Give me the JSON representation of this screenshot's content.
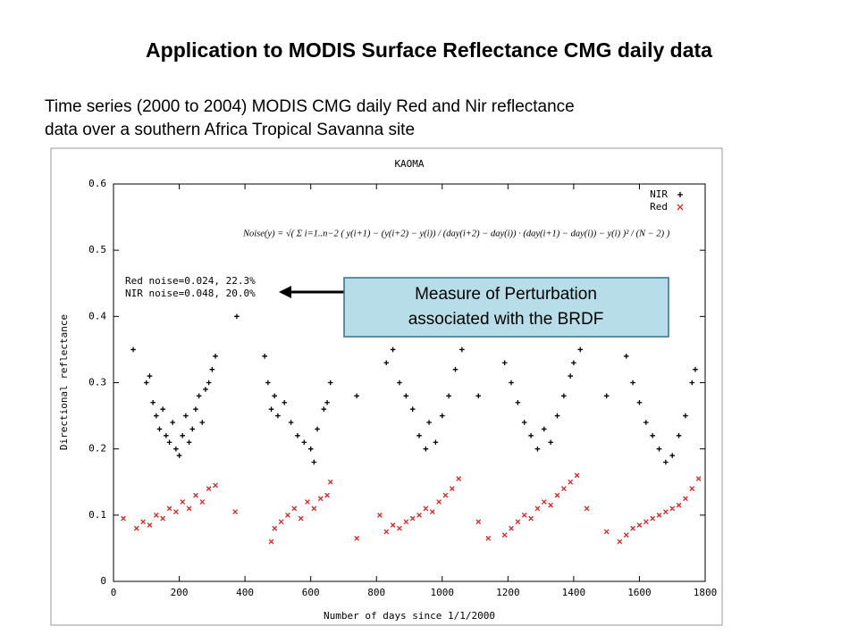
{
  "slide": {
    "title": "Application to MODIS Surface Reflectance CMG daily data",
    "subtitle": [
      "Time series (2000 to 2004) MODIS CMG daily Red and Nir reflectance",
      "data over a southern Africa Tropical Savanna site"
    ],
    "callout": [
      "Measure of Perturbation",
      "associated with the BRDF"
    ]
  },
  "chart_data": {
    "type": "scatter",
    "title": "KAOMA",
    "xlabel": "Number of days since 1/1/2000",
    "ylabel": "Directional reflectance",
    "formula": "Noise(y) = √( Σ i=1..n−2 ( y(i+1) − (y(i+2) − y(i)) / (day(i+2) − day(i)) · (day(i+1) − day(i)) − y(i) )² / (N − 2) )",
    "annotations": [
      "Red noise=0.024, 22.3%",
      "NIR noise=0.048, 20.0%"
    ],
    "xlim": [
      0,
      1800
    ],
    "xticks": [
      0,
      200,
      400,
      600,
      800,
      1000,
      1200,
      1400,
      1600,
      1800
    ],
    "ylim": [
      0,
      0.6
    ],
    "yticks": [
      0,
      0.1,
      0.2,
      0.3,
      0.4,
      0.5,
      0.6
    ],
    "legend": "upper right",
    "series": [
      {
        "name": "NIR",
        "color": "#000000",
        "marker": "plus",
        "x": [
          60,
          100,
          110,
          120,
          130,
          140,
          150,
          160,
          170,
          180,
          190,
          200,
          210,
          220,
          230,
          240,
          250,
          260,
          270,
          280,
          290,
          300,
          310,
          375,
          460,
          470,
          480,
          490,
          500,
          520,
          540,
          560,
          580,
          600,
          610,
          620,
          640,
          650,
          660,
          740,
          830,
          850,
          870,
          890,
          910,
          930,
          950,
          960,
          980,
          1000,
          1020,
          1040,
          1060,
          1110,
          1190,
          1210,
          1230,
          1250,
          1270,
          1290,
          1310,
          1330,
          1350,
          1370,
          1390,
          1400,
          1420,
          1500,
          1560,
          1580,
          1600,
          1620,
          1640,
          1660,
          1680,
          1700,
          1720,
          1740,
          1760,
          1770
        ],
        "values": [
          0.35,
          0.3,
          0.31,
          0.27,
          0.25,
          0.23,
          0.26,
          0.22,
          0.21,
          0.24,
          0.2,
          0.19,
          0.22,
          0.25,
          0.21,
          0.23,
          0.26,
          0.28,
          0.24,
          0.29,
          0.3,
          0.32,
          0.34,
          0.4,
          0.34,
          0.3,
          0.26,
          0.28,
          0.25,
          0.27,
          0.24,
          0.22,
          0.21,
          0.2,
          0.18,
          0.23,
          0.26,
          0.27,
          0.3,
          0.28,
          0.33,
          0.35,
          0.3,
          0.28,
          0.26,
          0.22,
          0.2,
          0.24,
          0.21,
          0.25,
          0.28,
          0.32,
          0.35,
          0.28,
          0.33,
          0.3,
          0.27,
          0.24,
          0.22,
          0.2,
          0.23,
          0.21,
          0.25,
          0.28,
          0.31,
          0.33,
          0.35,
          0.28,
          0.34,
          0.3,
          0.27,
          0.24,
          0.22,
          0.2,
          0.18,
          0.19,
          0.22,
          0.25,
          0.3,
          0.32
        ]
      },
      {
        "name": "Red",
        "color": "#e02020",
        "marker": "cross",
        "x": [
          30,
          70,
          90,
          110,
          130,
          150,
          170,
          190,
          210,
          230,
          250,
          270,
          290,
          310,
          370,
          480,
          490,
          510,
          530,
          550,
          570,
          590,
          610,
          630,
          650,
          660,
          740,
          810,
          830,
          850,
          870,
          890,
          910,
          930,
          950,
          970,
          990,
          1010,
          1030,
          1050,
          1110,
          1140,
          1190,
          1210,
          1230,
          1250,
          1270,
          1290,
          1310,
          1330,
          1350,
          1370,
          1390,
          1410,
          1440,
          1500,
          1540,
          1560,
          1580,
          1600,
          1620,
          1640,
          1660,
          1680,
          1700,
          1720,
          1740,
          1760,
          1780
        ],
        "values": [
          0.095,
          0.08,
          0.09,
          0.085,
          0.1,
          0.095,
          0.11,
          0.105,
          0.12,
          0.11,
          0.13,
          0.12,
          0.14,
          0.145,
          0.105,
          0.06,
          0.08,
          0.09,
          0.1,
          0.11,
          0.095,
          0.12,
          0.11,
          0.125,
          0.13,
          0.15,
          0.065,
          0.1,
          0.075,
          0.085,
          0.08,
          0.09,
          0.095,
          0.1,
          0.11,
          0.105,
          0.12,
          0.13,
          0.14,
          0.155,
          0.09,
          0.065,
          0.07,
          0.08,
          0.09,
          0.1,
          0.095,
          0.11,
          0.12,
          0.115,
          0.13,
          0.14,
          0.15,
          0.16,
          0.11,
          0.075,
          0.06,
          0.07,
          0.08,
          0.085,
          0.09,
          0.095,
          0.1,
          0.105,
          0.11,
          0.115,
          0.125,
          0.14,
          0.155
        ]
      }
    ]
  }
}
